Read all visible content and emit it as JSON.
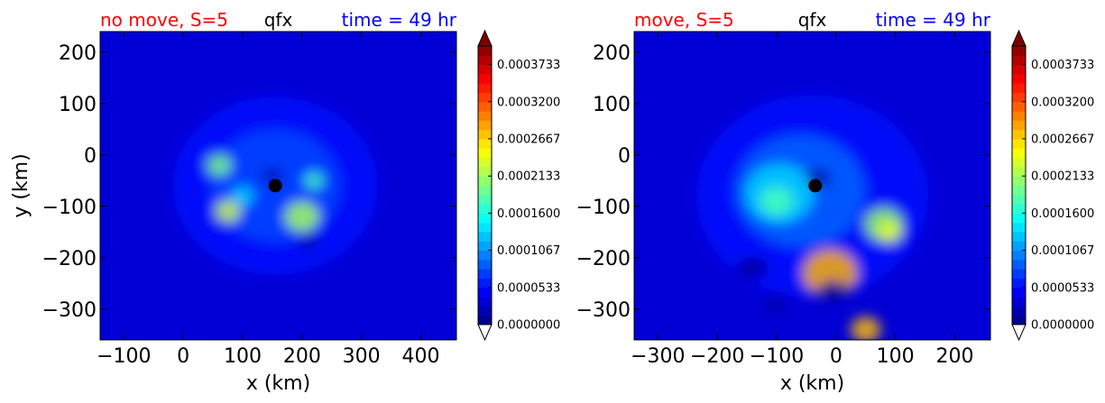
{
  "chart_data": [
    {
      "type": "heatmap",
      "title_left": "no move, S=5",
      "title_center": "qfx",
      "title_right": "time = 49 hr",
      "title_left_color": "#ff0000",
      "title_center_color": "#000000",
      "title_right_color": "#0000ff",
      "xlabel": "x (km)",
      "ylabel": "y (km)",
      "xlim": [
        -140,
        460
      ],
      "ylim": [
        -360,
        240
      ],
      "xticks": [
        -100,
        0,
        100,
        200,
        300,
        400
      ],
      "xtick_labels": [
        "−100",
        "0",
        "100",
        "200",
        "300",
        "400"
      ],
      "yticks": [
        200,
        100,
        0,
        -100,
        -200,
        -300
      ],
      "ytick_labels": [
        "200",
        "100",
        "0",
        "−100",
        "−200",
        "−300"
      ],
      "storm_center": [
        155,
        -60
      ],
      "field_blobs": [
        {
          "x": 155,
          "y": -60,
          "r": 150,
          "v": 4e-05
        },
        {
          "x": 155,
          "y": -60,
          "r": 95,
          "v": 4e-05
        },
        {
          "x": 100,
          "y": -80,
          "r": 16,
          "v": 0.0001
        },
        {
          "x": 220,
          "y": -50,
          "r": 14,
          "v": 8e-05
        },
        {
          "x": 60,
          "y": -20,
          "r": 18,
          "v": 4e-05
        },
        {
          "x": 200,
          "y": -120,
          "r": 25,
          "v": 3e-05
        },
        {
          "x": 75,
          "y": -110,
          "r": 18,
          "v": 3e-05
        }
      ],
      "dark_blobs": [
        {
          "x": 150,
          "y": -40,
          "r": 14
        },
        {
          "x": 210,
          "y": -170,
          "r": 14
        }
      ],
      "colorbar": {
        "tick_values": [
          0.0,
          5.33e-05,
          0.0001067,
          0.00016,
          0.0002133,
          0.0002667,
          0.00032,
          0.0003733
        ],
        "tick_labels": [
          "0.0000000",
          "0.0000533",
          "0.0001067",
          "0.0001600",
          "0.0002133",
          "0.0002667",
          "0.0003200",
          "0.0003733"
        ],
        "vmin": 0.0,
        "vmax": 0.0004,
        "levels": 30,
        "extend": "both"
      }
    },
    {
      "type": "heatmap",
      "title_left": "move, S=5",
      "title_center": "qfx",
      "title_right": "time = 49 hr",
      "title_left_color": "#ff0000",
      "title_center_color": "#000000",
      "title_right_color": "#0000ff",
      "xlabel": "x (km)",
      "ylabel": "",
      "xlim": [
        -340,
        260
      ],
      "ylim": [
        -360,
        240
      ],
      "xticks": [
        -300,
        -200,
        -100,
        0,
        100,
        200
      ],
      "xtick_labels": [
        "−300",
        "−200",
        "−100",
        "0",
        "100",
        "200"
      ],
      "yticks": [
        200,
        100,
        0,
        -100,
        -200,
        -300
      ],
      "ytick_labels": [
        "200",
        "100",
        "0",
        "−100",
        "−200",
        "−300"
      ],
      "storm_center": [
        -35,
        -60
      ],
      "field_blobs": [
        {
          "x": -40,
          "y": -80,
          "r": 170,
          "v": 4e-05
        },
        {
          "x": -60,
          "y": -70,
          "r": 95,
          "v": 6e-05
        },
        {
          "x": -95,
          "y": -75,
          "r": 50,
          "v": 8e-05
        },
        {
          "x": -100,
          "y": -90,
          "r": 24,
          "v": 8e-05
        },
        {
          "x": 80,
          "y": -135,
          "r": 28,
          "v": 6e-05
        },
        {
          "x": 90,
          "y": -150,
          "r": 18,
          "v": 5e-05
        },
        {
          "x": 50,
          "y": -340,
          "r": 22,
          "v": 7e-05
        },
        {
          "x": -10,
          "y": -230,
          "r": 40,
          "v": 3e-05
        }
      ],
      "dark_blobs": [
        {
          "x": -30,
          "y": -45,
          "r": 18
        },
        {
          "x": -140,
          "y": -220,
          "r": 22
        },
        {
          "x": -5,
          "y": -265,
          "r": 22
        },
        {
          "x": -100,
          "y": -290,
          "r": 14
        }
      ],
      "colorbar": {
        "tick_values": [
          0.0,
          5.33e-05,
          0.0001067,
          0.00016,
          0.0002133,
          0.0002667,
          0.00032,
          0.0003733
        ],
        "tick_labels": [
          "0.0000000",
          "0.0000533",
          "0.0001067",
          "0.0001600",
          "0.0002133",
          "0.0002667",
          "0.0003200",
          "0.0003733"
        ],
        "vmin": 0.0,
        "vmax": 0.0004,
        "levels": 30,
        "extend": "both"
      }
    }
  ]
}
